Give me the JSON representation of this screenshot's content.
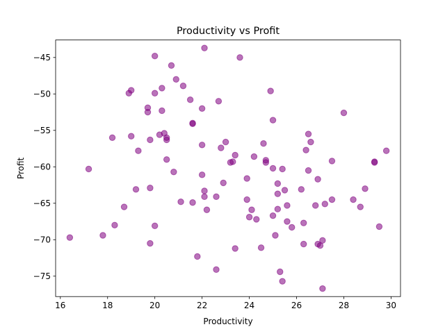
{
  "chart_data": {
    "type": "scatter",
    "title": "Productivity vs Profit",
    "xlabel": "Productivity",
    "ylabel": "Profit",
    "xlim": [
      15.8,
      30.4
    ],
    "ylim": [
      -77.8,
      -42.6
    ],
    "xticks": [
      16,
      18,
      20,
      22,
      24,
      26,
      28,
      30
    ],
    "yticks": [
      -75,
      -70,
      -65,
      -60,
      -55,
      -50,
      -45
    ],
    "xtick_labels": [
      "16",
      "18",
      "20",
      "22",
      "24",
      "26",
      "28",
      "30"
    ],
    "ytick_labels": [
      "−75",
      "−70",
      "−65",
      "−60",
      "−55",
      "−50",
      "−45"
    ],
    "grid": false,
    "marker_color": "#800080",
    "marker_alpha": 0.55,
    "series": [
      {
        "x": [
          16.4,
          17.2,
          17.8,
          18.2,
          18.3,
          18.7,
          18.9,
          19.0,
          19.0,
          19.2,
          19.3,
          19.7,
          19.7,
          19.8,
          19.8,
          19.8,
          20.0,
          20.0,
          20.0,
          20.2,
          20.3,
          20.3,
          20.4,
          20.5,
          20.5,
          20.5,
          20.7,
          20.8,
          20.9,
          21.1,
          21.2,
          21.5,
          21.6,
          21.6,
          21.6,
          21.8,
          22.0,
          22.0,
          22.0,
          22.1,
          22.1,
          22.1,
          22.2,
          22.6,
          22.6,
          22.7,
          22.8,
          22.9,
          23.0,
          23.2,
          23.3,
          23.4,
          23.4,
          23.6,
          23.9,
          23.9,
          24.0,
          24.1,
          24.2,
          24.3,
          24.5,
          24.6,
          24.7,
          24.7,
          24.9,
          25.0,
          25.0,
          25.0,
          25.1,
          25.2,
          25.2,
          25.2,
          25.3,
          25.4,
          25.4,
          25.5,
          25.6,
          25.6,
          25.8,
          26.2,
          26.3,
          26.3,
          26.4,
          26.5,
          26.5,
          26.6,
          26.8,
          26.9,
          26.9,
          27.0,
          27.1,
          27.1,
          27.2,
          27.5,
          27.5,
          28.0,
          28.4,
          28.7,
          28.9,
          29.3,
          29.3,
          29.5,
          29.8
        ],
        "y": [
          -69.7,
          -60.3,
          -69.4,
          -56.0,
          -68.0,
          -65.5,
          -49.9,
          -55.8,
          -49.5,
          -63.1,
          -57.8,
          -52.5,
          -51.9,
          -62.9,
          -56.3,
          -70.5,
          -44.8,
          -49.9,
          -68.1,
          -55.6,
          -49.2,
          -52.3,
          -55.4,
          -56.3,
          -56.0,
          -59.0,
          -46.1,
          -60.7,
          -48.0,
          -64.8,
          -48.9,
          -50.8,
          -54.0,
          -54.1,
          -64.9,
          -72.3,
          -61.1,
          -57.0,
          -52.0,
          -63.3,
          -64.1,
          -43.7,
          -65.9,
          -74.1,
          -64.1,
          -51.0,
          -57.4,
          -62.2,
          -56.6,
          -59.4,
          -59.3,
          -71.2,
          -58.4,
          -45.0,
          -61.6,
          -64.5,
          -66.9,
          -65.9,
          -58.6,
          -67.2,
          -71.1,
          -56.8,
          -59.1,
          -59.4,
          -49.6,
          -66.7,
          -53.6,
          -60.2,
          -69.4,
          -62.3,
          -65.8,
          -63.7,
          -74.4,
          -75.7,
          -60.3,
          -63.2,
          -65.3,
          -67.5,
          -68.3,
          -63.1,
          -70.6,
          -67.7,
          -57.7,
          -55.5,
          -60.5,
          -56.6,
          -65.3,
          -61.7,
          -70.6,
          -70.8,
          -76.7,
          -70.1,
          -65.1,
          -64.5,
          -59.2,
          -52.6,
          -64.5,
          -65.5,
          -63.0,
          -59.3,
          -59.4,
          -68.2,
          -57.8
        ],
        "alpha": 0.55
      }
    ]
  }
}
